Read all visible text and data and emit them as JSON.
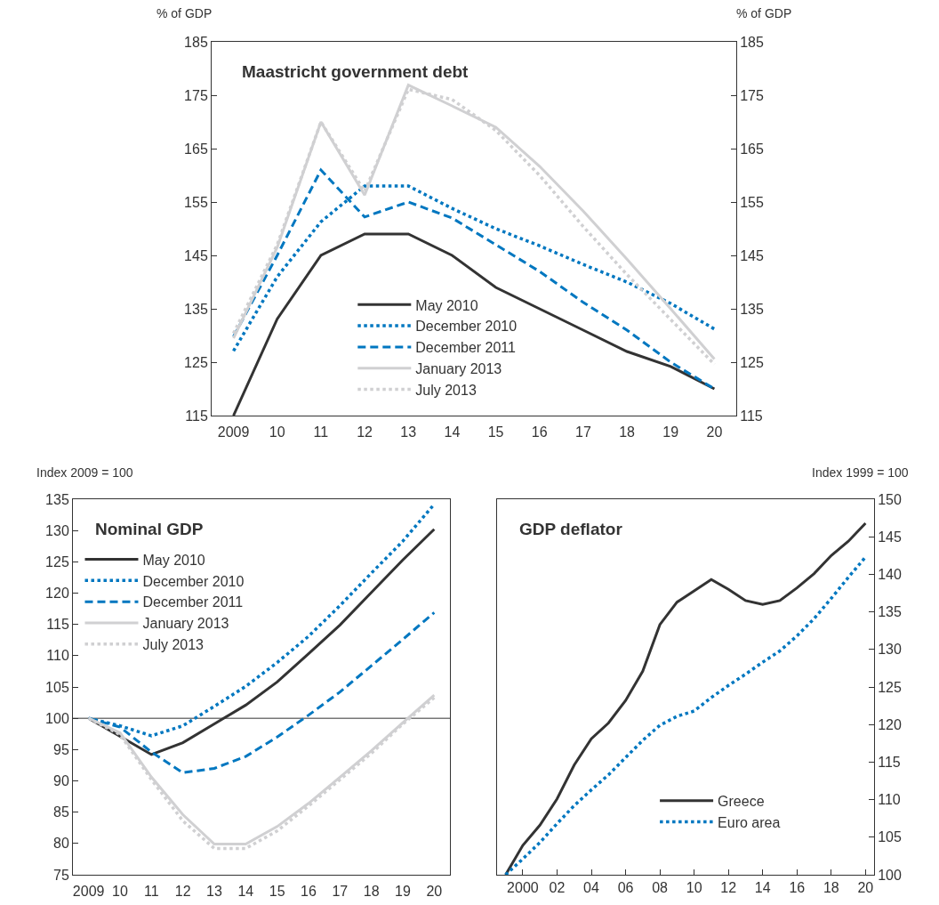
{
  "chart_data": [
    {
      "type": "line",
      "title": "Maastricht government debt",
      "ylabel": "% of GDP",
      "y2label": "% of GDP",
      "categories": [
        "2009",
        "10",
        "11",
        "12",
        "13",
        "14",
        "15",
        "16",
        "17",
        "18",
        "19",
        "20"
      ],
      "ylim": [
        115,
        185
      ],
      "yticks": [
        115,
        125,
        135,
        145,
        155,
        165,
        175,
        185
      ],
      "y2lim": [
        115,
        185
      ],
      "y2ticks": [
        115,
        125,
        135,
        145,
        155,
        165,
        175,
        185
      ],
      "grid": false,
      "legend": "bottom",
      "series": [
        {
          "name": "May 2010",
          "color": "#333333",
          "line_style": "solid",
          "values": [
            115,
            133.1,
            145,
            149,
            149,
            145,
            139,
            135,
            131,
            127,
            124.2,
            120
          ]
        },
        {
          "name": "December 2010",
          "color": "#0077c0",
          "line_style": "dotted",
          "values": [
            127.1,
            141,
            151.3,
            158,
            158,
            153.8,
            150,
            146.8,
            143.3,
            140,
            136,
            131.2
          ]
        },
        {
          "name": "December 2011",
          "color": "#0077c0",
          "line_style": "dashed",
          "values": [
            129.8,
            145,
            161,
            152.2,
            155,
            152,
            147,
            142,
            136.2,
            131,
            125,
            120
          ]
        },
        {
          "name": "January 2013",
          "color": "#d0d0d2",
          "line_style": "solid",
          "values": [
            129.5,
            146.5,
            170,
            156.3,
            176.9,
            173,
            169,
            161.7,
            153.3,
            144.3,
            135,
            125.6
          ]
        },
        {
          "name": "July 2013",
          "color": "#d0d0d2",
          "line_style": "dotted",
          "values": [
            130.4,
            147,
            170,
            157,
            176.1,
            174.2,
            168.4,
            160,
            150.4,
            141.4,
            133,
            124.6
          ]
        }
      ]
    },
    {
      "type": "line",
      "title": "Nominal GDP",
      "ylabel": "Index 2009 = 100",
      "categories": [
        "2009",
        "10",
        "11",
        "12",
        "13",
        "14",
        "15",
        "16",
        "17",
        "18",
        "19",
        "20"
      ],
      "ylim": [
        75,
        135
      ],
      "yticks": [
        75,
        80,
        85,
        90,
        95,
        100,
        105,
        110,
        115,
        120,
        125,
        130,
        135
      ],
      "grid": false,
      "legend": "top left",
      "ref_lines": [
        {
          "axis": "y",
          "value": 100,
          "color": "#333333"
        }
      ],
      "series": [
        {
          "name": "May 2010",
          "color": "#333333",
          "line_style": "solid",
          "values": [
            100,
            97.1,
            94.2,
            96.1,
            99.1,
            102.1,
            105.8,
            110.3,
            114.9,
            120.1,
            125.3,
            130.2
          ]
        },
        {
          "name": "December 2010",
          "color": "#0077c0",
          "line_style": "dotted",
          "values": [
            100,
            98.8,
            97.2,
            98.8,
            101.9,
            105.1,
            108.9,
            113.1,
            118,
            123.2,
            128.3,
            134.2
          ]
        },
        {
          "name": "December 2011",
          "color": "#0077c0",
          "line_style": "dashed",
          "values": [
            100,
            98.6,
            94.6,
            91.3,
            92,
            93.9,
            97,
            100.5,
            104.2,
            108.4,
            112.6,
            116.9
          ]
        },
        {
          "name": "January 2013",
          "color": "#d0d0d2",
          "line_style": "solid",
          "values": [
            100,
            97.7,
            90.6,
            84.6,
            79.9,
            79.9,
            82.7,
            86.4,
            90.6,
            94.8,
            99.3,
            103.7
          ]
        },
        {
          "name": "July 2013",
          "color": "#d0d0d2",
          "line_style": "dotted",
          "values": [
            100,
            97.4,
            90.2,
            83.6,
            79.2,
            79.2,
            82,
            86,
            90.2,
            94.4,
            99.1,
            103.3
          ]
        }
      ]
    },
    {
      "type": "line",
      "title": "GDP deflator",
      "ylabel": "Index 1999 = 100",
      "x": [
        1999,
        2000,
        2001,
        2002,
        2003,
        2004,
        2005,
        2006,
        2007,
        2008,
        2009,
        2010,
        2011,
        2012,
        2013,
        2014,
        2015,
        2016,
        2017,
        2018,
        2019,
        2020
      ],
      "xlim": [
        1998.5,
        2020.5
      ],
      "xticks": [
        {
          "value": 2000,
          "label": "2000"
        },
        {
          "value": 2002,
          "label": "02"
        },
        {
          "value": 2004,
          "label": "04"
        },
        {
          "value": 2006,
          "label": "06"
        },
        {
          "value": 2008,
          "label": "08"
        },
        {
          "value": 2010,
          "label": "10"
        },
        {
          "value": 2012,
          "label": "12"
        },
        {
          "value": 2014,
          "label": "14"
        },
        {
          "value": 2016,
          "label": "16"
        },
        {
          "value": 2018,
          "label": "18"
        },
        {
          "value": 2020,
          "label": "20"
        }
      ],
      "ylim": [
        100,
        150
      ],
      "yticks": [
        100,
        105,
        110,
        115,
        120,
        125,
        130,
        135,
        140,
        145,
        150
      ],
      "grid": false,
      "legend": "bottom right",
      "series": [
        {
          "name": "Greece",
          "color": "#333333",
          "line_style": "solid",
          "values": [
            100,
            103.9,
            106.6,
            110.1,
            114.6,
            118.1,
            120.2,
            123.2,
            127.1,
            133.3,
            136.3,
            137.8,
            139.3,
            138,
            136.5,
            136,
            136.5,
            138.2,
            140.1,
            142.5,
            144.4,
            146.8
          ]
        },
        {
          "name": "Euro area",
          "color": "#0077c0",
          "line_style": "dotted",
          "values": [
            100,
            102.1,
            104.3,
            106.8,
            109.2,
            111.3,
            113.3,
            115.6,
            117.9,
            119.9,
            121.1,
            121.8,
            123.6,
            125.2,
            126.7,
            128.3,
            129.8,
            131.8,
            134.1,
            136.8,
            139.6,
            142.3
          ]
        }
      ]
    }
  ]
}
